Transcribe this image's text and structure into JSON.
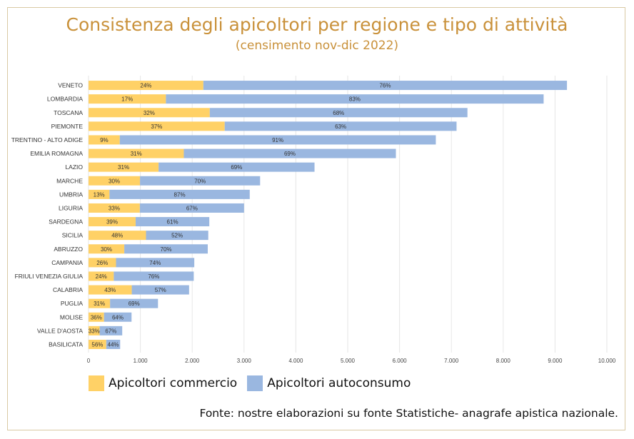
{
  "chart_data": {
    "type": "bar",
    "orientation": "horizontal",
    "stacked": true,
    "title": "Consistenza degli apicoltori per regione e tipo di attività",
    "subtitle": "(censimento nov-dic 2022)",
    "categories": [
      "VENETO",
      "LOMBARDIA",
      "TOSCANA",
      "PIEMONTE",
      "TRENTINO - ALTO ADIGE",
      "EMILIA ROMAGNA",
      "LAZIO",
      "MARCHE",
      "UMBRIA",
      "LIGURIA",
      "SARDEGNA",
      "SICILIA",
      "ABRUZZO",
      "CAMPANIA",
      "FRIULI VENEZIA GIULIA",
      "CALABRIA",
      "PUGLIA",
      "MOLISE",
      "VALLE D'AOSTA",
      "BASILICATA"
    ],
    "totals": [
      9230,
      8780,
      7310,
      7100,
      6700,
      5930,
      4360,
      3310,
      3110,
      3000,
      2330,
      2310,
      2300,
      2040,
      2030,
      1940,
      1340,
      830,
      650,
      610
    ],
    "series": [
      {
        "name": "Apicoltori commercio",
        "color": "#ffd166",
        "percent_labels": [
          "24%",
          "17%",
          "32%",
          "37%",
          "9%",
          "31%",
          "31%",
          "30%",
          "13%",
          "33%",
          "39%",
          "48%",
          "30%",
          "26%",
          "24%",
          "43%",
          "31%",
          "36%",
          "33%",
          "56%"
        ]
      },
      {
        "name": "Apicoltori autoconsumo",
        "color": "#9ab7e0",
        "percent_labels": [
          "76%",
          "83%",
          "68%",
          "63%",
          "91%",
          "69%",
          "69%",
          "70%",
          "87%",
          "67%",
          "61%",
          "52%",
          "70%",
          "74%",
          "76%",
          "57%",
          "69%",
          "64%",
          "67%",
          "44%"
        ]
      }
    ],
    "xlim": [
      0,
      10000
    ],
    "x_ticks": [
      "0",
      "1.000",
      "2.000",
      "3.000",
      "4.000",
      "5.000",
      "6.000",
      "7.000",
      "8.000",
      "9.000",
      "10.000"
    ],
    "grid": true,
    "legend_position": "bottom-left"
  },
  "source_text": "Fonte: nostre elaborazioni su fonte Statistiche- anagrafe apistica nazionale."
}
